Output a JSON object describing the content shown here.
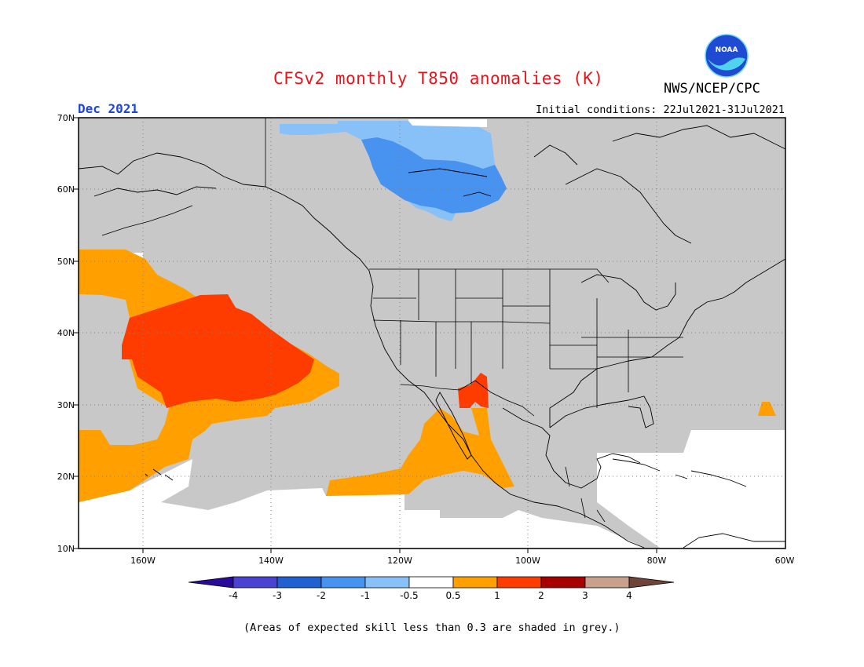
{
  "header": {
    "title": "CFSv2 monthly T850 anomalies (K)",
    "agency": "NWS/NCEP/CPC",
    "logo_text": "NOAA",
    "period": "Dec 2021",
    "initial_conditions": "Initial conditions: 22Jul2021-31Jul2021"
  },
  "map": {
    "lat_labels": [
      "70N",
      "60N",
      "50N",
      "40N",
      "30N",
      "20N",
      "10N"
    ],
    "lon_labels": [
      "160W",
      "140W",
      "120W",
      "100W",
      "80W",
      "60W"
    ],
    "extent": {
      "lon": [
        -172,
        -60
      ],
      "lat": [
        10,
        70
      ]
    },
    "grid": true
  },
  "legend": {
    "labels": [
      "-4",
      "-3",
      "-2",
      "-1",
      "-0.5",
      "0.5",
      "1",
      "2",
      "3",
      "4"
    ],
    "colors": [
      "#2a0a9a",
      "#4a42d0",
      "#2060d0",
      "#4892f0",
      "#88c0f8",
      "#ffffff",
      "#ffa000",
      "#ff3c00",
      "#a80000",
      "#c8a08c",
      "#6e4438"
    ]
  },
  "colors": {
    "skill_grey": "#c8c8c8",
    "title_red": "#e8141c",
    "period_blue": "#1c44e0"
  },
  "footnote": "(Areas of expected skill less than 0.3 are shaded in grey.)"
}
